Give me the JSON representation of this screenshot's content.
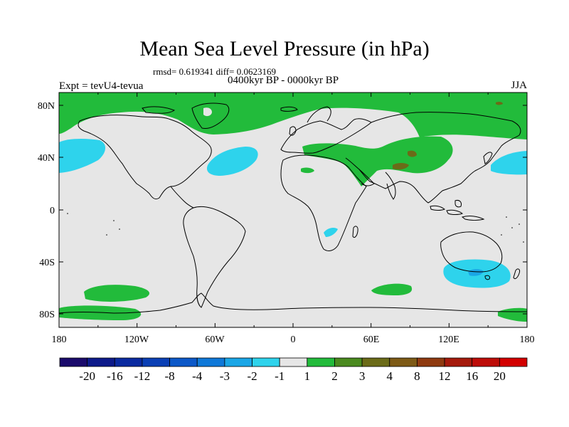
{
  "title": "Mean Sea Level Pressure (in hPa)",
  "stats": "rmsd= 0.619341 diff= 0.0623169",
  "period": "0400kyr BP - 0000kyr BP",
  "expt": "Expt = tevU4-tevua",
  "season": "JJA",
  "map": {
    "lon_ticks": [
      "180",
      "120W",
      "60W",
      "0",
      "60E",
      "120E",
      "180"
    ],
    "lat_ticks": [
      "80N",
      "40N",
      "0",
      "40S",
      "80S"
    ],
    "background_color": "#e6e6e6",
    "coast_color": "#000000"
  },
  "colorbar": {
    "labels": [
      "-20",
      "-16",
      "-12",
      "-8",
      "-4",
      "-3",
      "-2",
      "-1",
      "1",
      "2",
      "3",
      "4",
      "8",
      "12",
      "16",
      "20"
    ],
    "colors": [
      "#1a0a6b",
      "#0d1a8a",
      "#0a2aa0",
      "#0a3fb5",
      "#0c58c8",
      "#0f78d8",
      "#1aa6e6",
      "#2ed3ec",
      "#e6e6e6",
      "#22bb3b",
      "#4a8a1f",
      "#6b6b18",
      "#7d5a16",
      "#8f3a10",
      "#a51a0c",
      "#bd0c08",
      "#d20000"
    ]
  },
  "regions": {
    "positive_color": "#22bb3b",
    "strong_positive_color": "#6b6b18",
    "negative_color": "#2ed3ec",
    "strong_negative_color": "#1aa6e6"
  }
}
